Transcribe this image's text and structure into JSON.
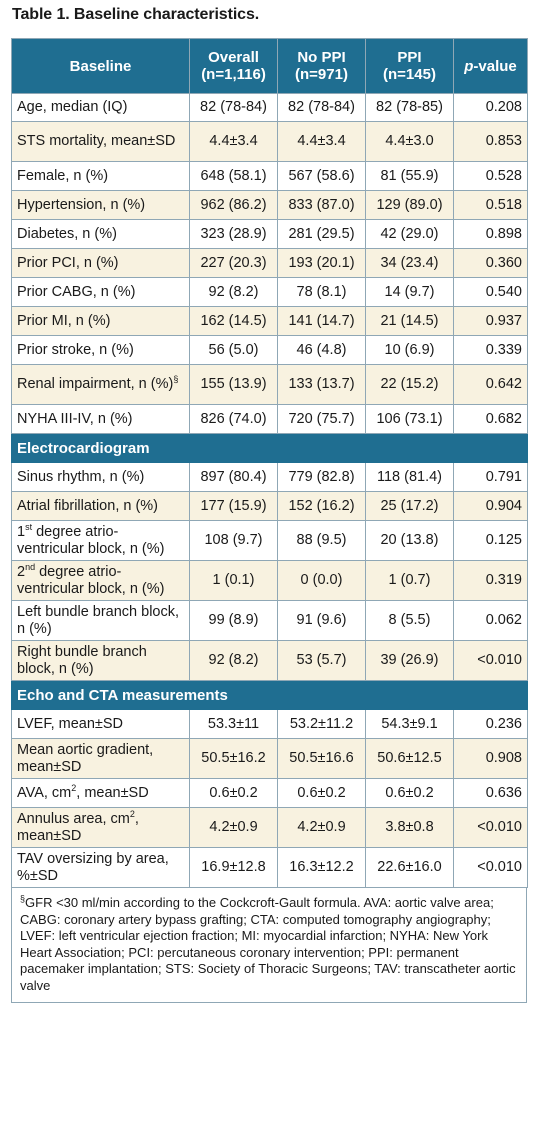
{
  "title": "Table 1. Baseline characteristics.",
  "header": {
    "col1": "Baseline",
    "overall_line1": "Overall",
    "overall_line2": "(n=1,116)",
    "noppi_line1": "No PPI",
    "noppi_line2": "(n=971)",
    "ppi_line1": "PPI",
    "ppi_line2": "(n=145)",
    "pvalue_italic": "p",
    "pvalue_rest": "-value"
  },
  "rows": [
    {
      "label": "Age, median (IQ)",
      "overall": "82 (78-84)",
      "noppi": "82 (78-84)",
      "ppi": "82 (78-85)",
      "p": "0.208"
    },
    {
      "label": "STS mortality, mean±SD",
      "overall": "4.4±3.4",
      "noppi": "4.4±3.4",
      "ppi": "4.4±3.0",
      "p": "0.853"
    },
    {
      "label": "Female, n (%)",
      "overall": "648 (58.1)",
      "noppi": "567 (58.6)",
      "ppi": "81 (55.9)",
      "p": "0.528"
    },
    {
      "label": "Hypertension, n (%)",
      "overall": "962 (86.2)",
      "noppi": "833 (87.0)",
      "ppi": "129 (89.0)",
      "p": "0.518"
    },
    {
      "label": "Diabetes, n (%)",
      "overall": "323 (28.9)",
      "noppi": "281 (29.5)",
      "ppi": "42 (29.0)",
      "p": "0.898"
    },
    {
      "label": "Prior PCI, n (%)",
      "overall": "227 (20.3)",
      "noppi": "193 (20.1)",
      "ppi": "34 (23.4)",
      "p": "0.360"
    },
    {
      "label": "Prior CABG, n (%)",
      "overall": "92 (8.2)",
      "noppi": "78 (8.1)",
      "ppi": "14 (9.7)",
      "p": "0.540"
    },
    {
      "label": "Prior MI, n (%)",
      "overall": "162 (14.5)",
      "noppi": "141 (14.7)",
      "ppi": "21 (14.5)",
      "p": "0.937"
    },
    {
      "label": "Prior stroke, n (%)",
      "overall": "56 (5.0)",
      "noppi": "46 (4.8)",
      "ppi": "10 (6.9)",
      "p": "0.339"
    },
    {
      "label": "Renal impairment, n (%)",
      "label_sup": "§",
      "overall": "155 (13.9)",
      "noppi": "133 (13.7)",
      "ppi": "22 (15.2)",
      "p": "0.642"
    },
    {
      "label": "NYHA III-IV, n (%)",
      "overall": "826 (74.0)",
      "noppi": "720 (75.7)",
      "ppi": "106 (73.1)",
      "p": "0.682"
    }
  ],
  "section_ecg": "Electrocardiogram",
  "ecg_rows": [
    {
      "label": "Sinus rhythm, n (%)",
      "overall": "897 (80.4)",
      "noppi": "779 (82.8)",
      "ppi": "118 (81.4)",
      "p": "0.791"
    },
    {
      "label": "Atrial fibrillation, n (%)",
      "overall": "177 (15.9)",
      "noppi": "152 (16.2)",
      "ppi": "25 (17.2)",
      "p": "0.904"
    },
    {
      "label_pre": "1",
      "label_sup": "st",
      "label": " degree atrio-ventricular block, n (%)",
      "overall": "108 (9.7)",
      "noppi": "88 (9.5)",
      "ppi": "20 (13.8)",
      "p": "0.125"
    },
    {
      "label_pre": "2",
      "label_sup": "nd",
      "label": " degree atrio-ventricular block, n (%)",
      "overall": "1 (0.1)",
      "noppi": "0 (0.0)",
      "ppi": "1 (0.7)",
      "p": "0.319"
    },
    {
      "label": "Left bundle branch block, n (%)",
      "overall": "99 (8.9)",
      "noppi": "91 (9.6)",
      "ppi": "8 (5.5)",
      "p": "0.062"
    },
    {
      "label": "Right bundle branch block, n (%)",
      "overall": "92 (8.2)",
      "noppi": "53 (5.7)",
      "ppi": "39 (26.9)",
      "p": "<0.010"
    }
  ],
  "section_echo": "Echo and CTA measurements",
  "echo_rows": [
    {
      "label": "LVEF, mean±SD",
      "overall": "53.3±11",
      "noppi": "53.2±11.2",
      "ppi": "54.3±9.1",
      "p": "0.236"
    },
    {
      "label": "Mean aortic gradient, mean±SD",
      "overall": "50.5±16.2",
      "noppi": "50.5±16.6",
      "ppi": "50.6±12.5",
      "p": "0.908"
    },
    {
      "label": "AVA, cm",
      "label_sup": "2",
      "label_post": ", mean±SD",
      "overall": "0.6±0.2",
      "noppi": "0.6±0.2",
      "ppi": "0.6±0.2",
      "p": "0.636"
    },
    {
      "label": "Annulus area, cm",
      "label_sup": "2",
      "label_post": ", mean±SD",
      "overall": "4.2±0.9",
      "noppi": "4.2±0.9",
      "ppi": "3.8±0.8",
      "p": "<0.010"
    },
    {
      "label": "TAV oversizing by area, %±SD",
      "overall": "16.9±12.8",
      "noppi": "16.3±12.2",
      "ppi": "22.6±16.0",
      "p": "<0.010"
    }
  ],
  "footnote_sup": "§",
  "footnote": "GFR <30 ml/min according to the Cockcroft-Gault formula. AVA: aortic valve area; CABG: coronary artery bypass grafting; CTA: computed tomography angiography; LVEF: left ventricular ejection fraction; MI: myocardial infarction; NYHA: New York Heart Association; PCI: percutaneous coronary intervention; PPI: permanent pacemaker implantation; STS: Society of Thoracic Surgeons; TAV: transcatheter aortic valve"
}
